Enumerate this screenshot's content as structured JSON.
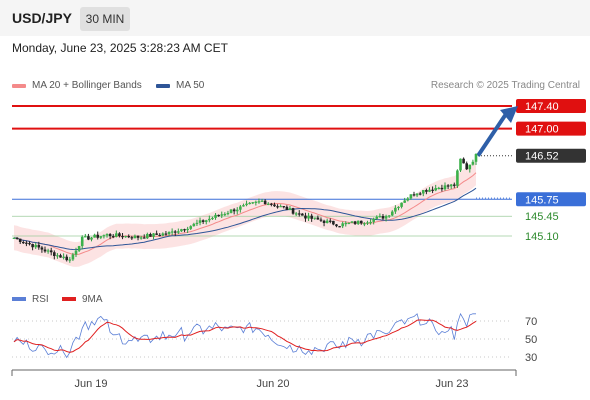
{
  "header": {
    "pair": "USD/JPY",
    "timeframe": "30 MIN"
  },
  "datetime": "Monday, June 23, 2025 3:28:23 AM CET",
  "legend": {
    "ma20": {
      "label": "MA 20 + Bollinger Bands",
      "color": "#f48a8a"
    },
    "ma50": {
      "label": "MA 50",
      "color": "#2e5597"
    }
  },
  "credit": "Research © 2025 Trading Central",
  "rsi_legend": {
    "rsi": {
      "label": "RSI",
      "color": "#5b7fd6"
    },
    "ma9": {
      "label": "9MA",
      "color": "#e02020"
    }
  },
  "chart_data": {
    "type": "candlestick",
    "x_ticks": [
      "Jun 19",
      "Jun 20",
      "Jun 23"
    ],
    "price_axis": {
      "min": 144.5,
      "max": 147.7
    },
    "levels": [
      {
        "value": 147.4,
        "label": "147.40",
        "kind": "resistance",
        "color": "#e01010"
      },
      {
        "value": 147.0,
        "label": "147.00",
        "kind": "resistance",
        "color": "#e01010"
      },
      {
        "value": 146.52,
        "label": "146.52",
        "kind": "last-price",
        "color": "#333333"
      },
      {
        "value": 145.75,
        "label": "145.75",
        "kind": "pivot",
        "color": "#3a6fd8"
      },
      {
        "value": 145.45,
        "label": "145.45",
        "kind": "support",
        "color": "#2e8b2e"
      },
      {
        "value": 145.1,
        "label": "145.10",
        "kind": "support",
        "color": "#2e8b2e"
      }
    ],
    "projection": {
      "from": 146.52,
      "to": 147.4,
      "direction": "up"
    },
    "rsi_axis": {
      "ticks": [
        70,
        50,
        30
      ],
      "min": 20,
      "max": 80
    }
  }
}
